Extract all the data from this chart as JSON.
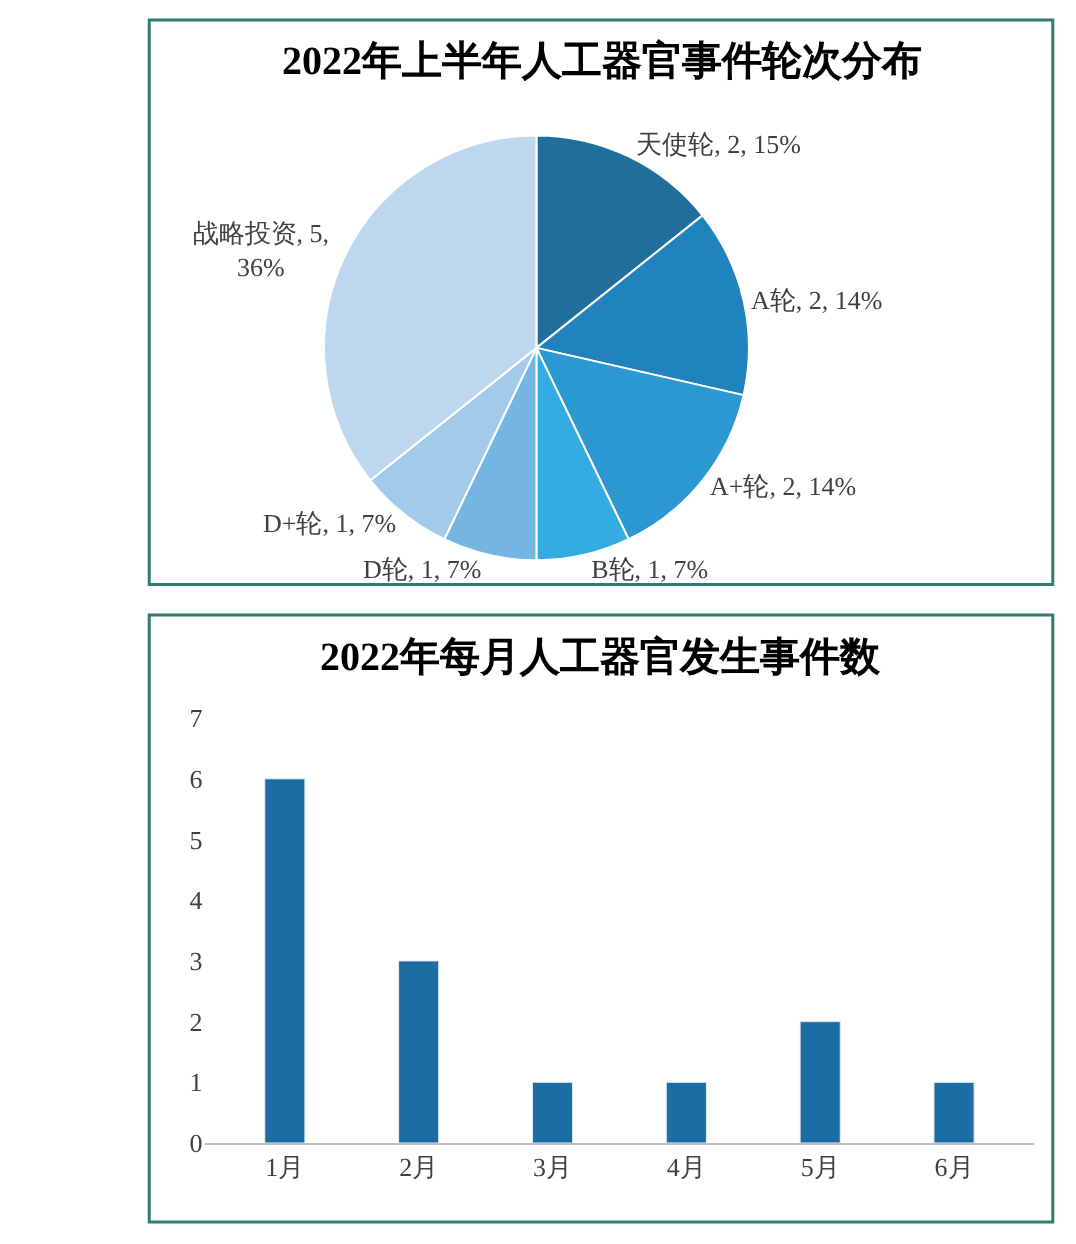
{
  "chart_data": [
    {
      "type": "pie",
      "title": "2022年上半年人工器官事件轮次分布",
      "categories": [
        "天使轮",
        "A轮",
        "A+轮",
        "B轮",
        "D轮",
        "D+轮",
        "战略投资"
      ],
      "values": [
        2,
        2,
        2,
        1,
        1,
        1,
        5
      ],
      "colors": [
        "#1f6e9c",
        "#2183bd",
        "#2b98d2",
        "#35abe3",
        "#74b5e2",
        "#a2cbeb",
        "#bdd7ee"
      ],
      "value_labels": [
        "2, 15%",
        "2, 14%",
        "2, 14%",
        "1, 7%",
        "1, 7%",
        "1, 7%",
        "5, 36%"
      ]
    },
    {
      "type": "bar",
      "title": "2022年每月人工器官发生事件数",
      "categories": [
        "1月",
        "2月",
        "3月",
        "4月",
        "5月",
        "6月"
      ],
      "values": [
        6,
        3,
        1,
        1,
        2,
        1
      ],
      "color": "#1a6ea3",
      "ylim": [
        0,
        7
      ],
      "yticks": [
        0,
        1,
        2,
        3,
        4,
        5,
        6,
        7
      ]
    }
  ]
}
